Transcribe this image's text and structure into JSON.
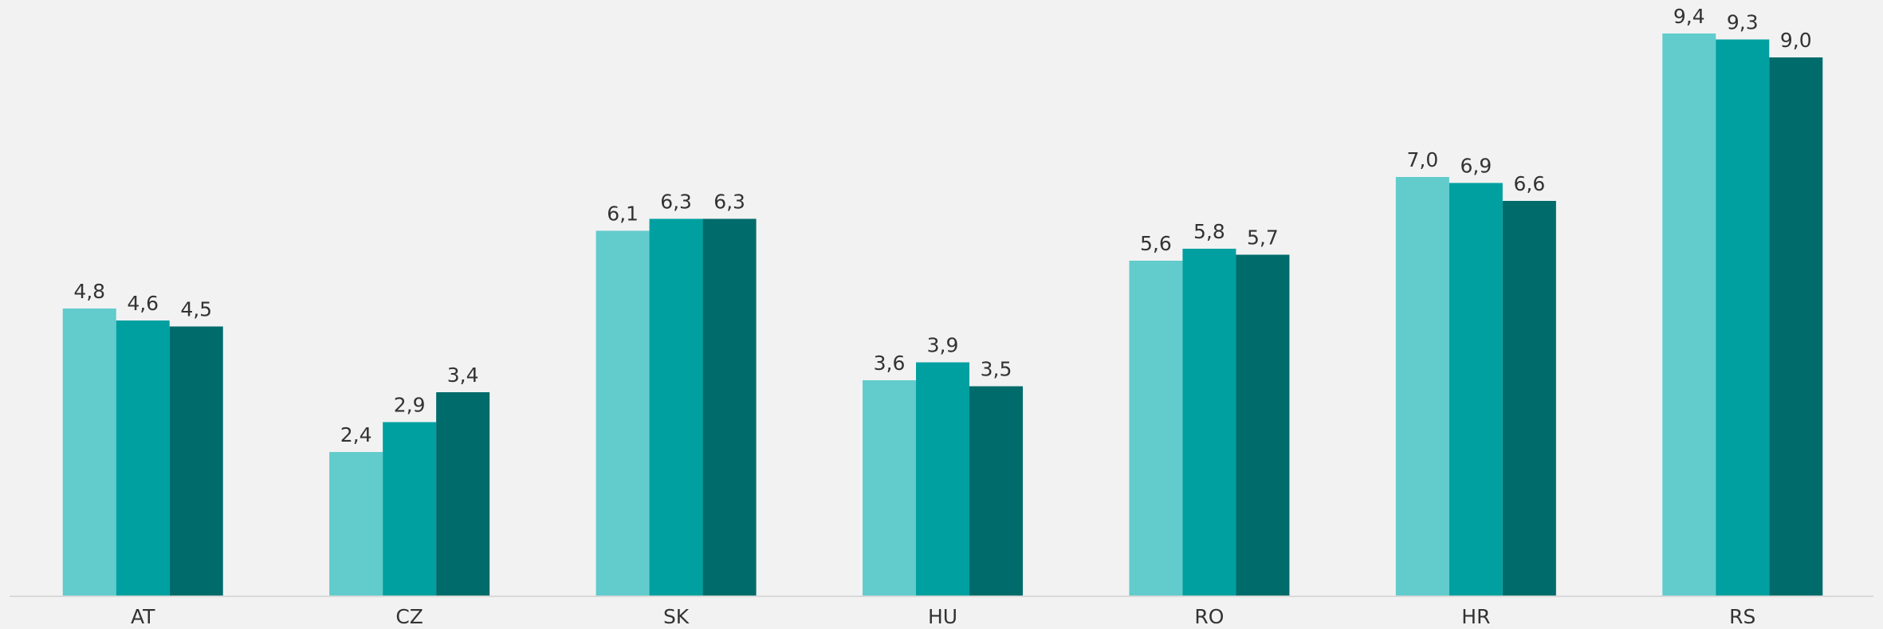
{
  "chart_data": {
    "type": "bar",
    "categories": [
      "AT",
      "CZ",
      "SK",
      "HU",
      "RO",
      "HR",
      "RS"
    ],
    "series": [
      {
        "color": "#62cbcc",
        "values": [
          4.8,
          2.4,
          6.1,
          3.6,
          5.6,
          7.0,
          9.4
        ],
        "value_labels": [
          "4,8",
          "2,4",
          "6,1",
          "3,6",
          "5,6",
          "7,0",
          "9,4"
        ]
      },
      {
        "color": "#00a0a0",
        "values": [
          4.6,
          2.9,
          6.3,
          3.9,
          5.8,
          6.9,
          9.3
        ],
        "value_labels": [
          "4,6",
          "2,9",
          "6,3",
          "3,9",
          "5,8",
          "6,9",
          "9,3"
        ]
      },
      {
        "color": "#006b6b",
        "values": [
          4.5,
          3.4,
          6.3,
          3.5,
          5.7,
          6.6,
          9.0
        ],
        "value_labels": [
          "4,5",
          "3,4",
          "6,3",
          "3,5",
          "5,7",
          "6,6",
          "9,0"
        ]
      }
    ]
  }
}
